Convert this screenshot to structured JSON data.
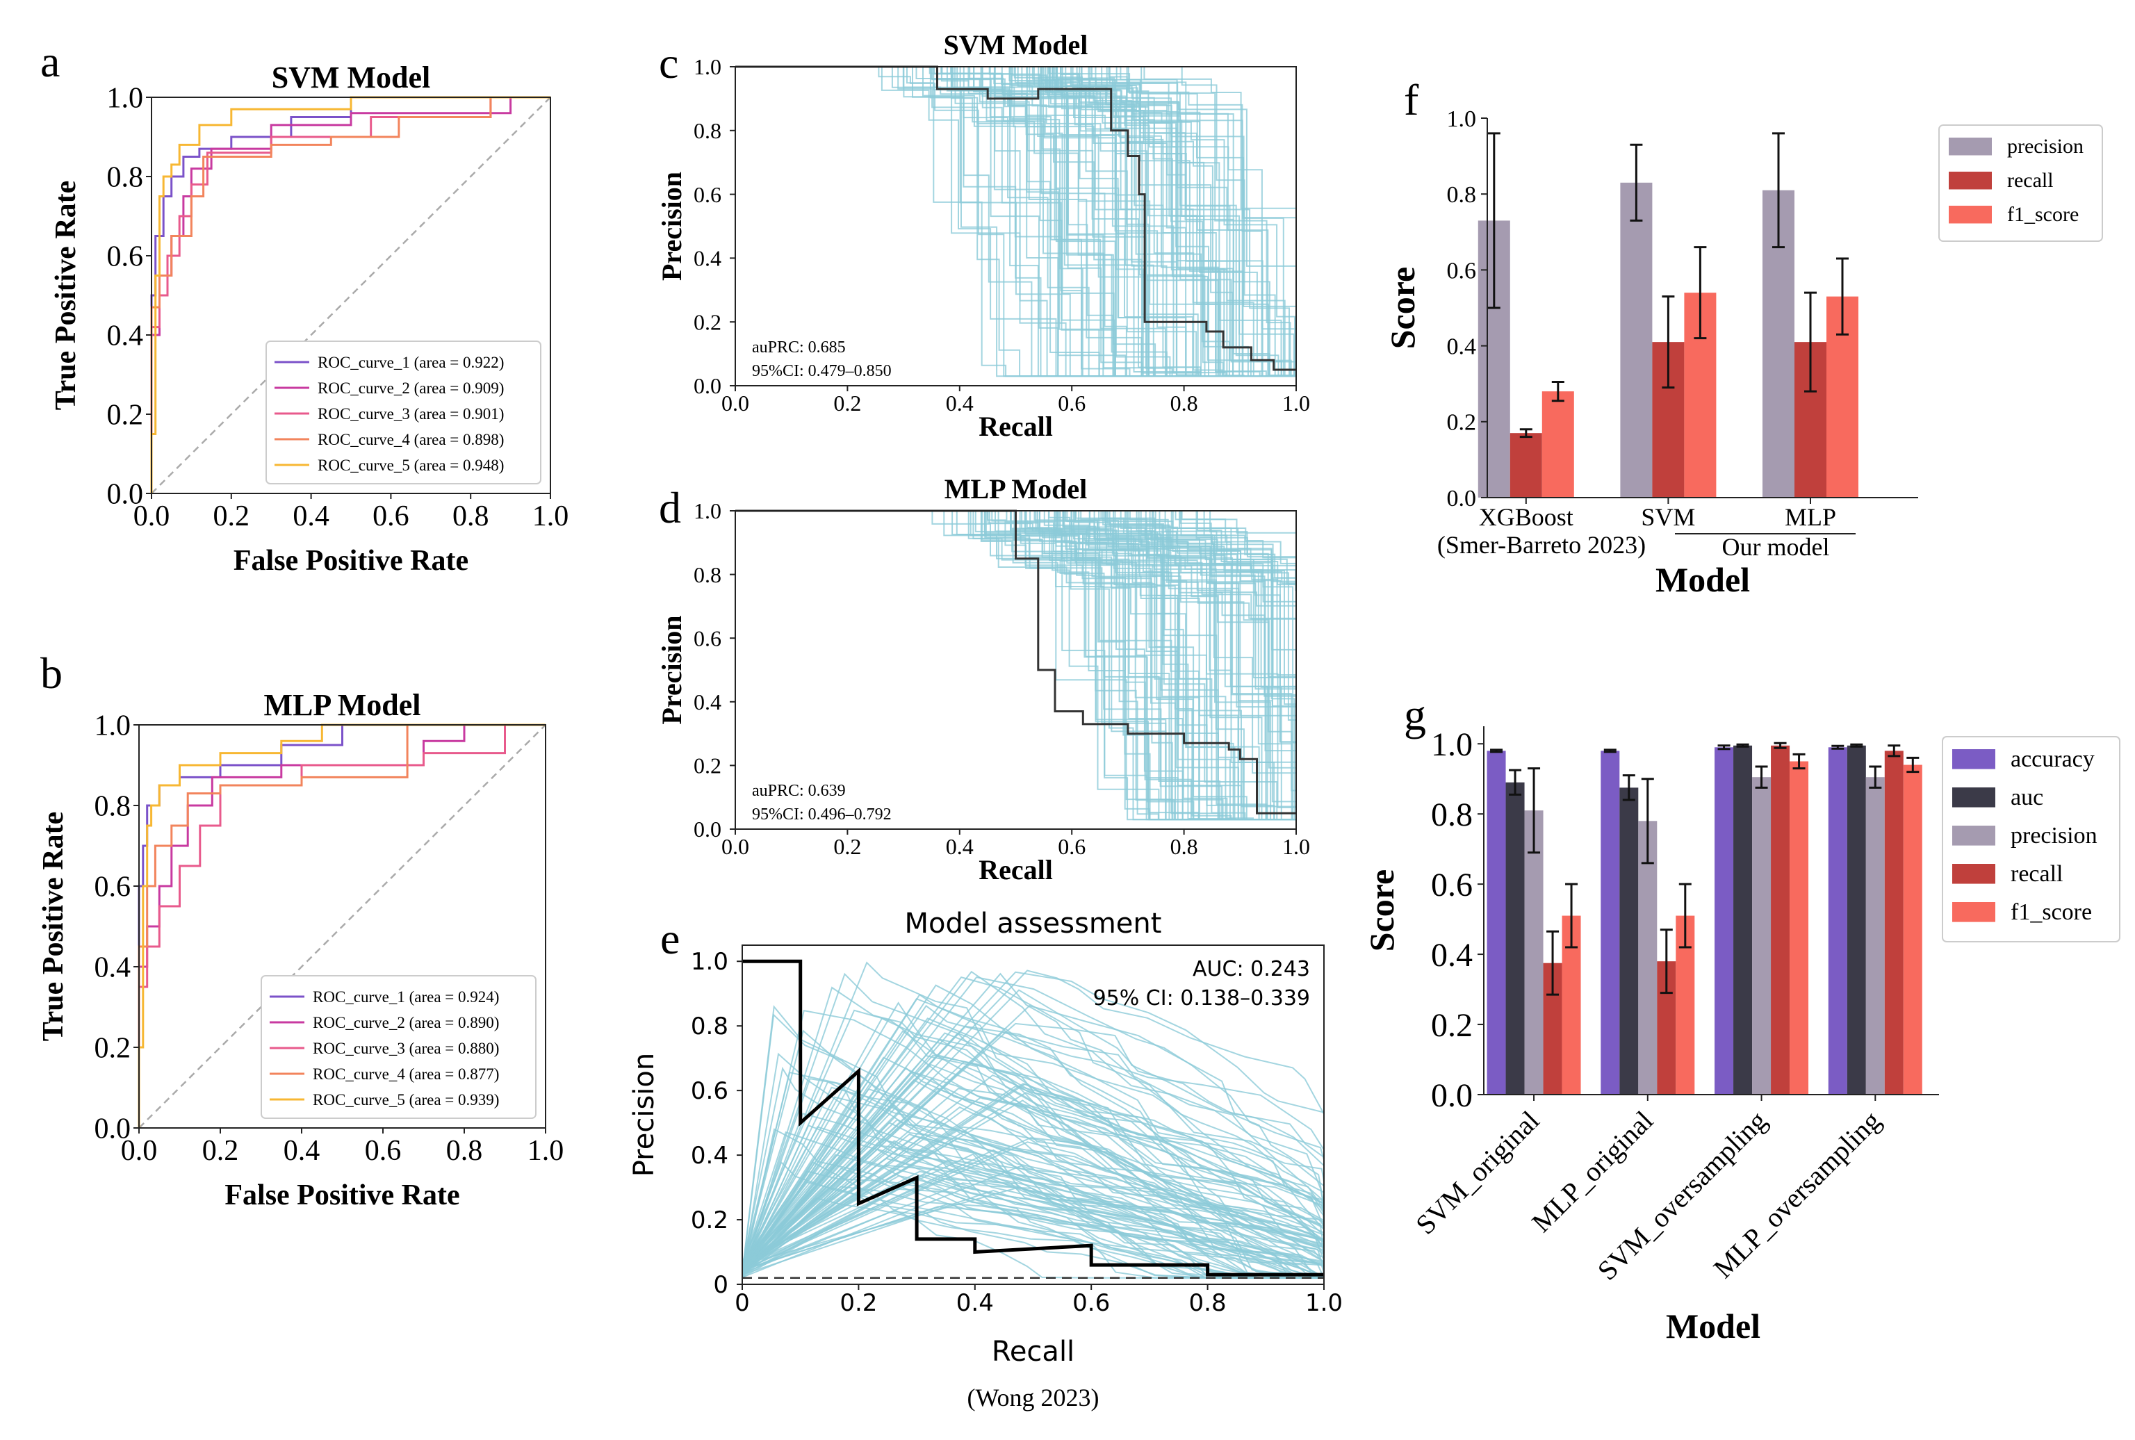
{
  "colors": {
    "roc": [
      "#7b52c9",
      "#c83aa0",
      "#e85a8c",
      "#f2845c",
      "#f7b733"
    ],
    "pr_curve": "#8ccbd8",
    "pr_mean": "#333333",
    "bar": {
      "accuracy": "#7b5cc4",
      "auc": "#3b3a48",
      "precision": "#a59bb0",
      "recall": "#c0403c",
      "f1_score": "#f86a5e"
    }
  },
  "chart_data": [
    {
      "id": "a",
      "panel_letter": "a",
      "type": "line",
      "title": "SVM Model",
      "xlabel": "False Positive Rate",
      "ylabel": "True Positive Rate",
      "xlim": [
        0,
        1
      ],
      "ylim": [
        0,
        1
      ],
      "xticks": [
        "0.0",
        "0.2",
        "0.4",
        "0.6",
        "0.8",
        "1.0"
      ],
      "yticks": [
        "0.0",
        "0.2",
        "0.4",
        "0.6",
        "0.8",
        "1.0"
      ],
      "legend_position": "bottom-right",
      "series": [
        {
          "name": "ROC_curve_1 (area = 0.922)",
          "x": [
            0,
            0,
            0.01,
            0.01,
            0.03,
            0.03,
            0.05,
            0.05,
            0.08,
            0.08,
            0.12,
            0.12,
            0.2,
            0.2,
            0.35,
            0.35,
            0.5,
            0.5,
            0.6,
            0.6,
            1
          ],
          "y": [
            0,
            0.5,
            0.5,
            0.65,
            0.65,
            0.75,
            0.75,
            0.8,
            0.8,
            0.85,
            0.85,
            0.87,
            0.87,
            0.9,
            0.9,
            0.95,
            0.95,
            1,
            1,
            1,
            1
          ]
        },
        {
          "name": "ROC_curve_2 (area = 0.909)",
          "x": [
            0,
            0,
            0.02,
            0.02,
            0.05,
            0.05,
            0.08,
            0.08,
            0.1,
            0.1,
            0.15,
            0.15,
            0.3,
            0.3,
            0.5,
            0.5,
            0.9,
            0.9,
            1
          ],
          "y": [
            0,
            0.4,
            0.4,
            0.55,
            0.55,
            0.65,
            0.65,
            0.75,
            0.75,
            0.82,
            0.82,
            0.87,
            0.87,
            0.93,
            0.93,
            0.96,
            0.96,
            1,
            1
          ]
        },
        {
          "name": "ROC_curve_3 (area = 0.901)",
          "x": [
            0,
            0,
            0.02,
            0.02,
            0.04,
            0.04,
            0.07,
            0.07,
            0.1,
            0.1,
            0.14,
            0.14,
            0.3,
            0.3,
            0.55,
            0.55,
            0.85,
            0.85,
            1
          ],
          "y": [
            0,
            0.42,
            0.42,
            0.5,
            0.5,
            0.6,
            0.6,
            0.7,
            0.7,
            0.78,
            0.78,
            0.86,
            0.86,
            0.9,
            0.9,
            0.95,
            0.95,
            1,
            1
          ]
        },
        {
          "name": "ROC_curve_4 (area = 0.898)",
          "x": [
            0,
            0,
            0.02,
            0.02,
            0.05,
            0.05,
            0.1,
            0.1,
            0.13,
            0.13,
            0.3,
            0.3,
            0.45,
            0.45,
            0.62,
            0.62,
            0.85,
            0.85,
            1
          ],
          "y": [
            0,
            0.47,
            0.47,
            0.55,
            0.55,
            0.65,
            0.65,
            0.75,
            0.75,
            0.85,
            0.85,
            0.88,
            0.88,
            0.9,
            0.9,
            0.95,
            0.95,
            1,
            1
          ]
        },
        {
          "name": "ROC_curve_5 (area = 0.948)",
          "x": [
            0,
            0,
            0.01,
            0.01,
            0.02,
            0.02,
            0.03,
            0.03,
            0.05,
            0.05,
            0.07,
            0.07,
            0.12,
            0.12,
            0.2,
            0.2,
            0.5,
            0.5,
            0.7,
            0.7,
            1
          ],
          "y": [
            0,
            0.15,
            0.15,
            0.55,
            0.55,
            0.75,
            0.75,
            0.8,
            0.8,
            0.83,
            0.83,
            0.88,
            0.88,
            0.93,
            0.93,
            0.97,
            0.97,
            1,
            1,
            1,
            1
          ]
        }
      ]
    },
    {
      "id": "b",
      "panel_letter": "b",
      "type": "line",
      "title": "MLP Model",
      "xlabel": "False Positive Rate",
      "ylabel": "True Positive Rate",
      "xlim": [
        0,
        1
      ],
      "ylim": [
        0,
        1
      ],
      "xticks": [
        "0.0",
        "0.2",
        "0.4",
        "0.6",
        "0.8",
        "1.0"
      ],
      "yticks": [
        "0.0",
        "0.2",
        "0.4",
        "0.6",
        "0.8",
        "1.0"
      ],
      "legend_position": "bottom-right",
      "series": [
        {
          "name": "ROC_curve_1 (area = 0.924)",
          "x": [
            0,
            0,
            0.01,
            0.01,
            0.02,
            0.02,
            0.05,
            0.05,
            0.1,
            0.1,
            0.2,
            0.2,
            0.35,
            0.35,
            0.5,
            0.5,
            0.65,
            0.65,
            1
          ],
          "y": [
            0,
            0.6,
            0.6,
            0.7,
            0.7,
            0.8,
            0.8,
            0.85,
            0.85,
            0.87,
            0.87,
            0.9,
            0.9,
            0.95,
            0.95,
            1,
            1,
            1,
            1
          ]
        },
        {
          "name": "ROC_curve_2 (area = 0.890)",
          "x": [
            0,
            0,
            0.02,
            0.02,
            0.05,
            0.05,
            0.08,
            0.08,
            0.12,
            0.12,
            0.18,
            0.18,
            0.35,
            0.35,
            0.7,
            0.7,
            0.8,
            0.8,
            1
          ],
          "y": [
            0,
            0.4,
            0.4,
            0.5,
            0.5,
            0.6,
            0.6,
            0.7,
            0.7,
            0.8,
            0.8,
            0.87,
            0.87,
            0.9,
            0.9,
            0.96,
            0.96,
            1,
            1
          ]
        },
        {
          "name": "ROC_curve_3 (area = 0.880)",
          "x": [
            0,
            0,
            0.02,
            0.02,
            0.05,
            0.05,
            0.1,
            0.1,
            0.15,
            0.15,
            0.2,
            0.2,
            0.4,
            0.4,
            0.7,
            0.7,
            0.9,
            0.9,
            1
          ],
          "y": [
            0,
            0.35,
            0.35,
            0.45,
            0.45,
            0.55,
            0.55,
            0.65,
            0.65,
            0.75,
            0.75,
            0.85,
            0.85,
            0.9,
            0.9,
            0.93,
            0.93,
            1,
            1
          ]
        },
        {
          "name": "ROC_curve_4 (area = 0.877)",
          "x": [
            0,
            0,
            0.02,
            0.02,
            0.04,
            0.04,
            0.08,
            0.08,
            0.12,
            0.12,
            0.2,
            0.2,
            0.4,
            0.4,
            0.66,
            0.66,
            1
          ],
          "y": [
            0,
            0.45,
            0.45,
            0.6,
            0.6,
            0.7,
            0.7,
            0.75,
            0.75,
            0.83,
            0.83,
            0.85,
            0.85,
            0.87,
            0.87,
            1,
            1
          ]
        },
        {
          "name": "ROC_curve_5 (area = 0.939)",
          "x": [
            0,
            0,
            0.01,
            0.01,
            0.02,
            0.02,
            0.03,
            0.03,
            0.05,
            0.05,
            0.1,
            0.1,
            0.2,
            0.2,
            0.35,
            0.35,
            0.45,
            0.45,
            1
          ],
          "y": [
            0,
            0.2,
            0.2,
            0.6,
            0.6,
            0.75,
            0.75,
            0.8,
            0.8,
            0.85,
            0.85,
            0.9,
            0.9,
            0.93,
            0.93,
            0.96,
            0.96,
            1,
            1
          ]
        }
      ]
    },
    {
      "id": "c",
      "panel_letter": "c",
      "type": "line",
      "title": "SVM Model",
      "xlabel": "Recall",
      "ylabel": "Precision",
      "xlim": [
        0,
        1
      ],
      "ylim": [
        0,
        1
      ],
      "xticks": [
        "0.0",
        "0.2",
        "0.4",
        "0.6",
        "0.8",
        "1.0"
      ],
      "yticks": [
        "0.0",
        "0.2",
        "0.4",
        "0.6",
        "0.8",
        "1.0"
      ],
      "annotation": [
        "auPRC: 0.685",
        "95%CI: 0.479–0.850"
      ],
      "curve_count": 100,
      "mean_curve": {
        "x": [
          0,
          0.36,
          0.36,
          0.45,
          0.45,
          0.54,
          0.54,
          0.67,
          0.67,
          0.7,
          0.7,
          0.72,
          0.72,
          0.73,
          0.73,
          0.84,
          0.84,
          0.87,
          0.87,
          0.92,
          0.92,
          0.96,
          0.96,
          1
        ],
        "y": [
          1,
          1,
          0.93,
          0.93,
          0.9,
          0.9,
          0.93,
          0.93,
          0.8,
          0.8,
          0.72,
          0.72,
          0.6,
          0.6,
          0.2,
          0.2,
          0.17,
          0.17,
          0.12,
          0.12,
          0.08,
          0.08,
          0.05,
          0.05
        ]
      }
    },
    {
      "id": "d",
      "panel_letter": "d",
      "type": "line",
      "title": "MLP Model",
      "xlabel": "Recall",
      "ylabel": "Precision",
      "xlim": [
        0,
        1
      ],
      "ylim": [
        0,
        1
      ],
      "xticks": [
        "0.0",
        "0.2",
        "0.4",
        "0.6",
        "0.8",
        "1.0"
      ],
      "yticks": [
        "0.0",
        "0.2",
        "0.4",
        "0.6",
        "0.8",
        "1.0"
      ],
      "annotation": [
        "auPRC: 0.639",
        "95%CI: 0.496–0.792"
      ],
      "curve_count": 100,
      "mean_curve": {
        "x": [
          0,
          0.5,
          0.5,
          0.54,
          0.54,
          0.57,
          0.57,
          0.62,
          0.62,
          0.7,
          0.7,
          0.8,
          0.8,
          0.88,
          0.88,
          0.9,
          0.9,
          0.93,
          0.93,
          1
        ],
        "y": [
          1,
          1,
          0.85,
          0.85,
          0.5,
          0.5,
          0.37,
          0.37,
          0.33,
          0.33,
          0.3,
          0.3,
          0.27,
          0.27,
          0.25,
          0.25,
          0.22,
          0.22,
          0.05,
          0.05
        ]
      }
    },
    {
      "id": "e",
      "panel_letter": "e",
      "type": "line",
      "title": "Model assessment",
      "xlabel": "Recall",
      "ylabel": "Precision",
      "caption": "(Wong 2023)",
      "xlim": [
        0,
        1
      ],
      "ylim": [
        0,
        1.05
      ],
      "xticks": [
        "0",
        "0.2",
        "0.4",
        "0.6",
        "0.8",
        "1.0"
      ],
      "yticks": [
        "0",
        "0.2",
        "0.4",
        "0.6",
        "0.8",
        "1.0"
      ],
      "annotation": [
        "AUC: 0.243",
        "95% CI: 0.138–0.339"
      ],
      "curve_count": 100,
      "baseline": 0.02,
      "mean_curve": {
        "x": [
          0,
          0.03,
          0.03,
          0.1,
          0.1,
          0.2,
          0.2,
          0.3,
          0.3,
          0.4,
          0.4,
          0.6,
          0.6,
          0.8,
          0.8,
          0.9,
          0.9,
          1
        ],
        "y": [
          1,
          1,
          1,
          1,
          0.5,
          0.66,
          0.25,
          0.33,
          0.14,
          0.14,
          0.1,
          0.12,
          0.06,
          0.06,
          0.03,
          0.03,
          0.03,
          0.03
        ]
      }
    },
    {
      "id": "f",
      "panel_letter": "f",
      "type": "bar",
      "xlabel": "Model",
      "ylabel": "Score",
      "ylim": [
        0,
        1
      ],
      "yticks": [
        "0.0",
        "0.2",
        "0.4",
        "0.6",
        "0.8",
        "1.0"
      ],
      "categories": [
        "XGBoost",
        "SVM",
        "MLP"
      ],
      "category_sublabels": [
        "(Smer-Barreto 2023)",
        "Our model"
      ],
      "legend_position": "top-right",
      "series": [
        {
          "name": "precision",
          "values": [
            0.73,
            0.83,
            0.81
          ],
          "errors": [
            0.23,
            0.1,
            0.15
          ]
        },
        {
          "name": "recall",
          "values": [
            0.17,
            0.41,
            0.41
          ],
          "errors": [
            0.01,
            0.12,
            0.13
          ]
        },
        {
          "name": "f1_score",
          "values": [
            0.28,
            0.54,
            0.53
          ],
          "errors": [
            0.025,
            0.12,
            0.1
          ]
        }
      ]
    },
    {
      "id": "g",
      "panel_letter": "g",
      "type": "bar",
      "xlabel": "Model",
      "ylabel": "Score",
      "ylim": [
        0,
        1.05
      ],
      "yticks": [
        "0.0",
        "0.2",
        "0.4",
        "0.6",
        "0.8",
        "1.0"
      ],
      "categories": [
        "SVM_original",
        "MLP_original",
        "SVM_oversampling",
        "MLP_oversampling"
      ],
      "legend_position": "top-right",
      "series": [
        {
          "name": "accuracy",
          "values": [
            0.98,
            0.98,
            0.99,
            0.99
          ],
          "errors": [
            0.003,
            0.003,
            0.005,
            0.004
          ]
        },
        {
          "name": "auc",
          "values": [
            0.89,
            0.875,
            0.995,
            0.995
          ],
          "errors": [
            0.035,
            0.035,
            0.003,
            0.003
          ]
        },
        {
          "name": "precision",
          "values": [
            0.81,
            0.78,
            0.905,
            0.905
          ],
          "errors": [
            0.12,
            0.12,
            0.03,
            0.03
          ]
        },
        {
          "name": "recall",
          "values": [
            0.375,
            0.38,
            0.995,
            0.98
          ],
          "errors": [
            0.09,
            0.09,
            0.007,
            0.015
          ]
        },
        {
          "name": "f1_score",
          "values": [
            0.51,
            0.51,
            0.95,
            0.94
          ],
          "errors": [
            0.09,
            0.09,
            0.02,
            0.02
          ]
        }
      ]
    }
  ]
}
